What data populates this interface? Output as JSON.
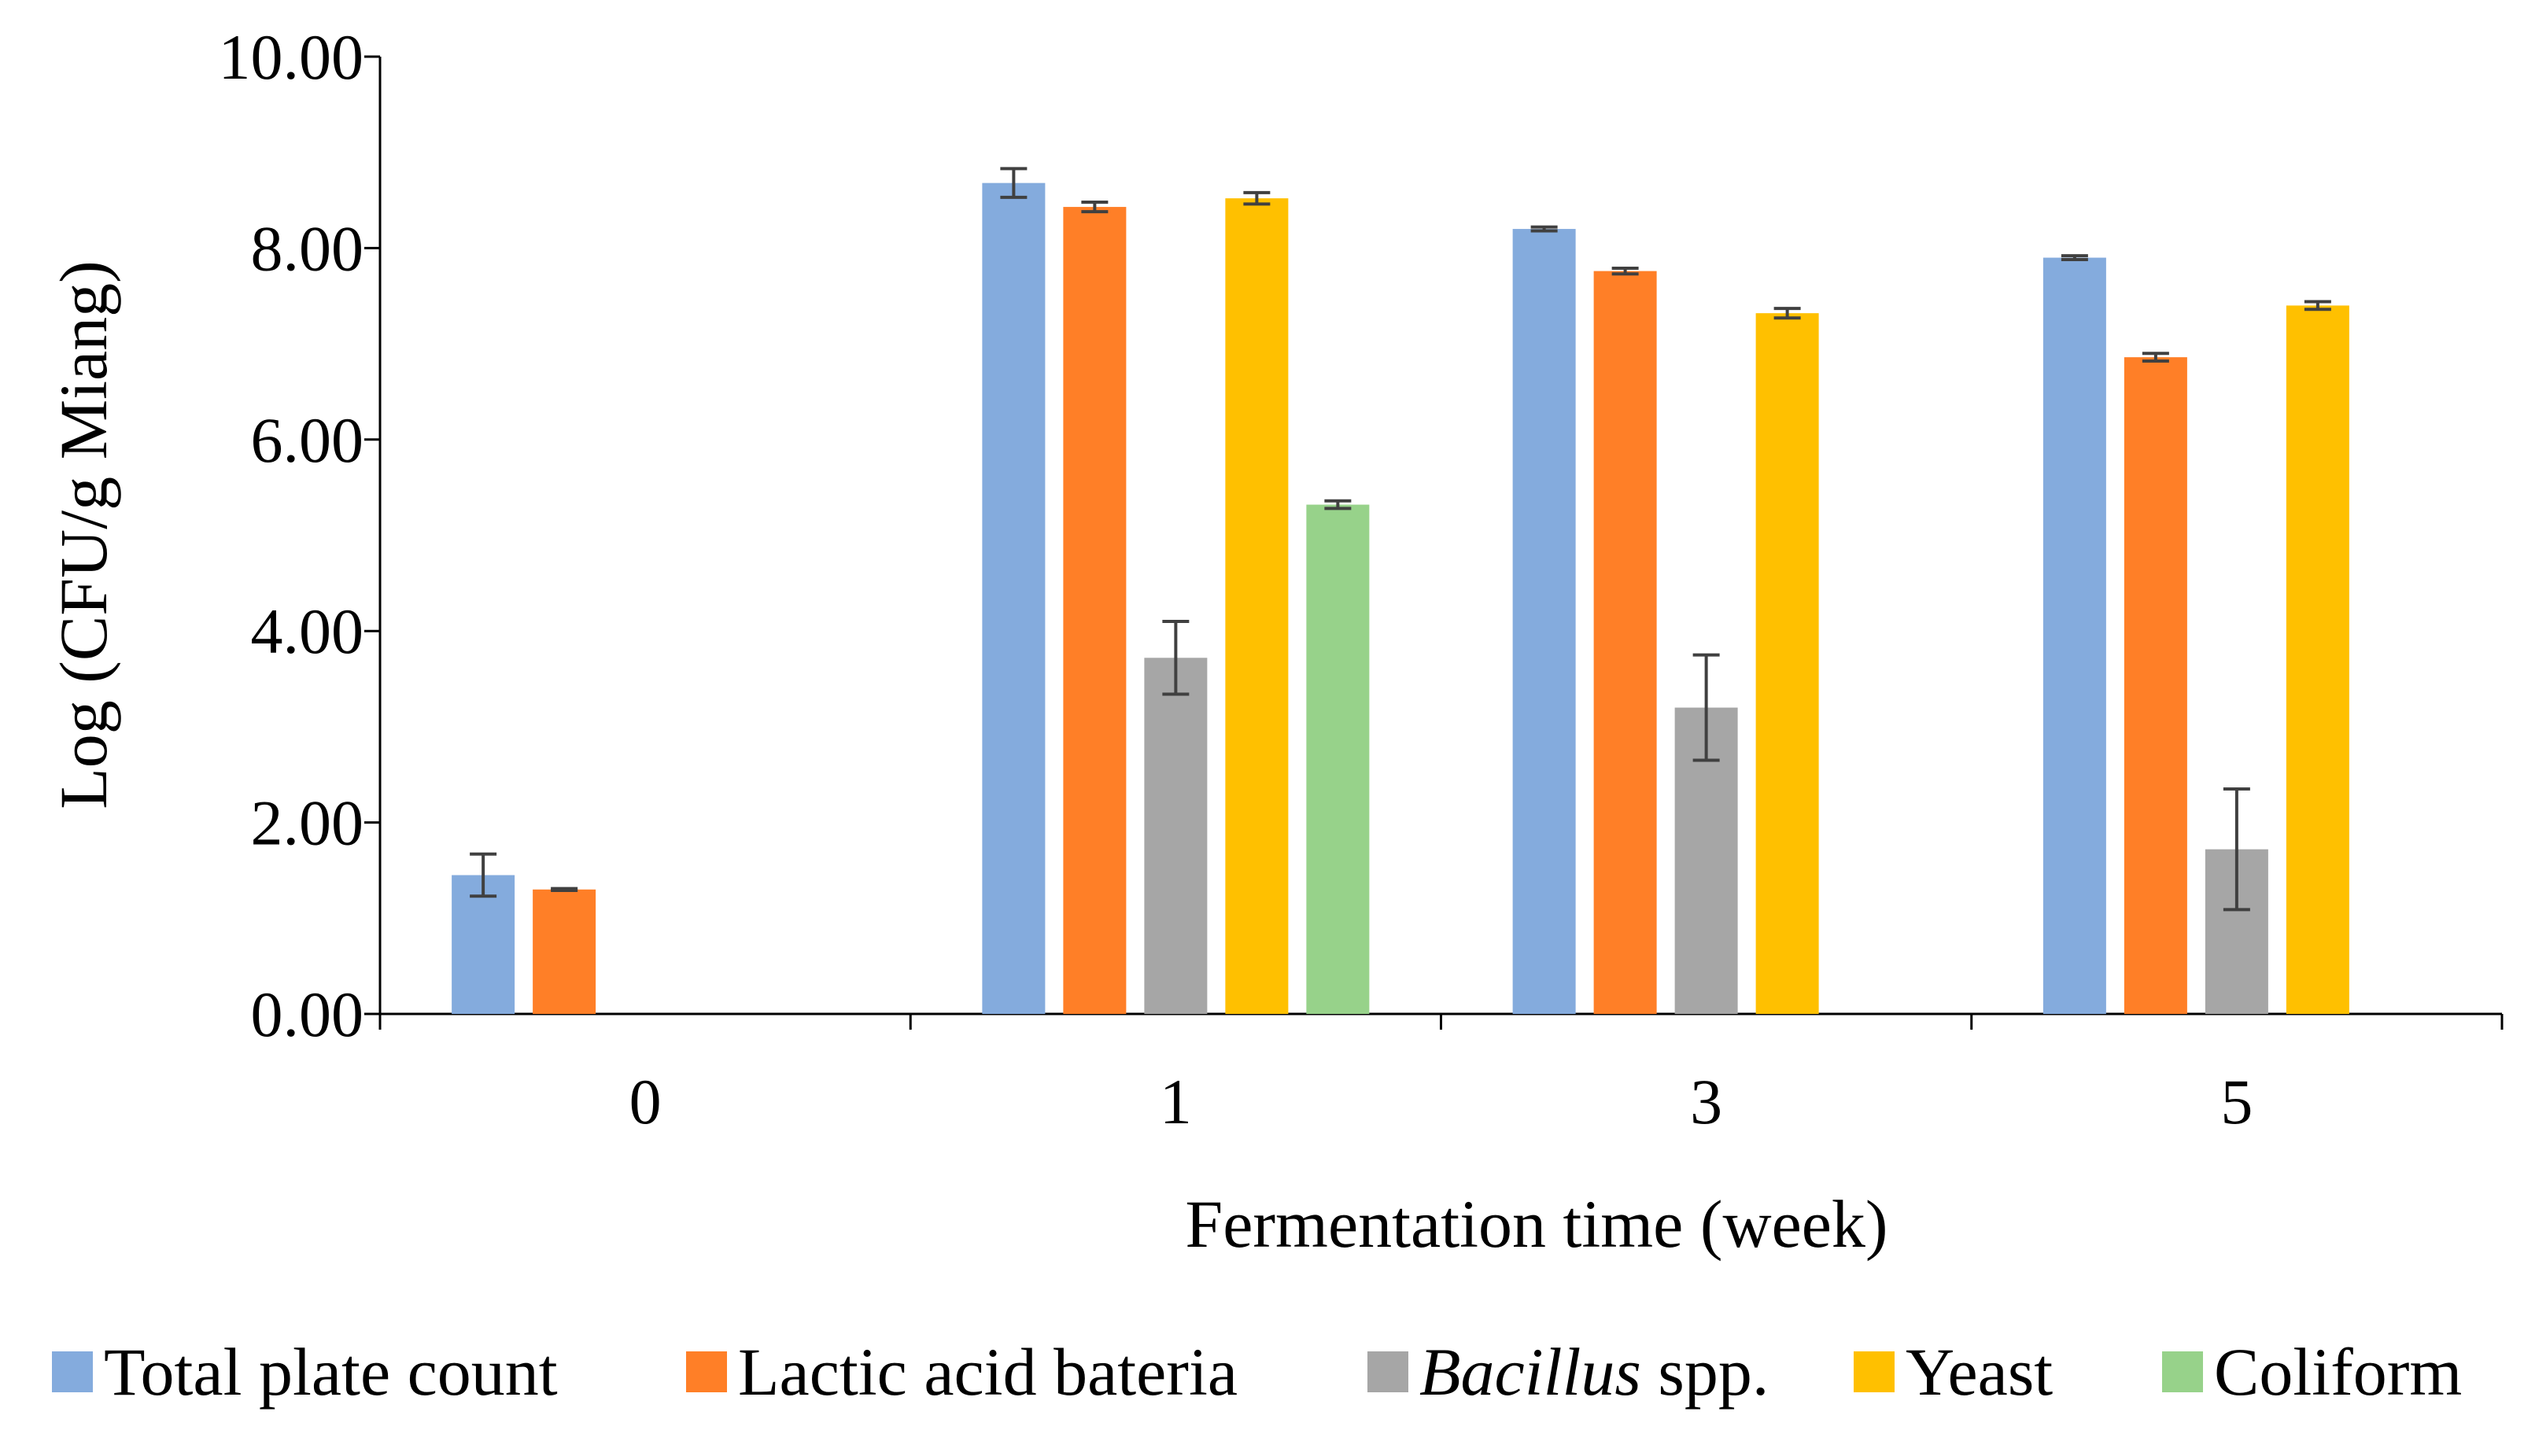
{
  "chart_data": {
    "type": "bar",
    "title": "",
    "xlabel": "Fermentation time (week)",
    "ylabel": "Log (CFU/g Miang)",
    "ylim": [
      0,
      10
    ],
    "yticks": [
      "0.00",
      "2.00",
      "4.00",
      "6.00",
      "8.00",
      "10.00"
    ],
    "categories": [
      "0",
      "1",
      "3",
      "5"
    ],
    "legend_position": "bottom",
    "series": [
      {
        "name": "Total plate count",
        "name_italic": "",
        "name_rest": "Total plate count",
        "color": "#84ABDD",
        "values": [
          1.45,
          8.68,
          8.2,
          7.9
        ],
        "errors": [
          0.22,
          0.15,
          0.02,
          0.02
        ]
      },
      {
        "name": "Lactic acid bateria",
        "name_italic": "",
        "name_rest": "Lactic acid bateria",
        "color": "#FF7F27",
        "values": [
          1.3,
          8.43,
          7.76,
          6.86
        ],
        "errors": [
          0.01,
          0.05,
          0.03,
          0.04
        ]
      },
      {
        "name": "Bacillus spp.",
        "name_italic": "Bacillus",
        "name_rest": " spp.",
        "color": "#A6A6A6",
        "values": [
          null,
          3.72,
          3.2,
          1.72
        ],
        "errors": [
          null,
          0.38,
          0.55,
          0.63
        ]
      },
      {
        "name": "Yeast",
        "name_italic": "",
        "name_rest": "Yeast",
        "color": "#FFC000",
        "values": [
          null,
          8.52,
          7.32,
          7.4
        ],
        "errors": [
          null,
          0.06,
          0.05,
          0.04
        ]
      },
      {
        "name": "Coliform",
        "name_italic": "",
        "name_rest": "Coliform",
        "color": "#97D28A",
        "values": [
          null,
          5.32,
          null,
          null
        ],
        "errors": [
          null,
          0.04,
          null,
          null
        ]
      }
    ]
  }
}
